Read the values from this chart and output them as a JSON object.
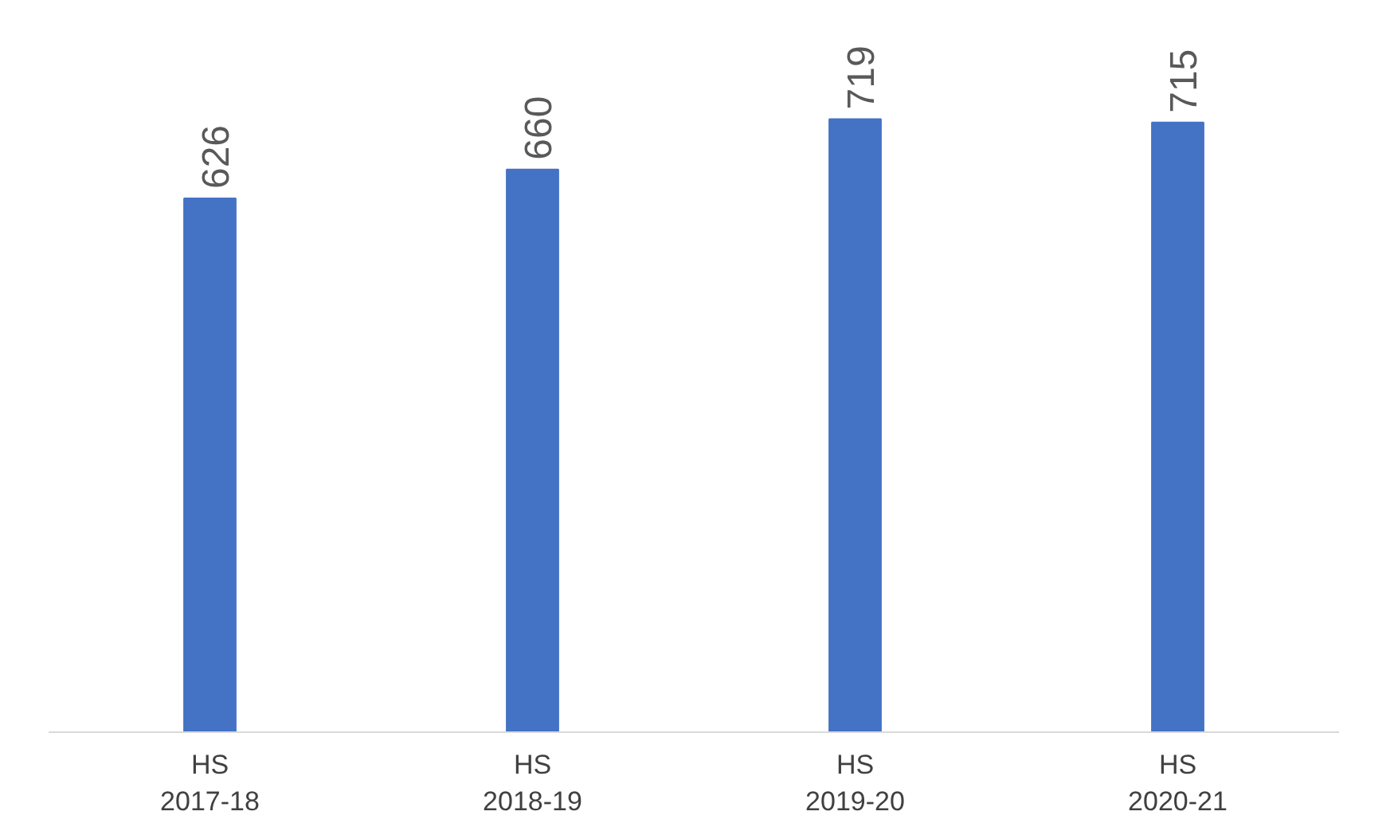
{
  "chart_data": {
    "type": "bar",
    "categories": [
      "HS\n2017-18",
      "HS\n2018-19",
      "HS\n2019-20",
      "HS\n2020-21"
    ],
    "values": [
      626,
      660,
      719,
      715
    ],
    "color": "#4472c4",
    "data_labels": true,
    "grid": false
  }
}
